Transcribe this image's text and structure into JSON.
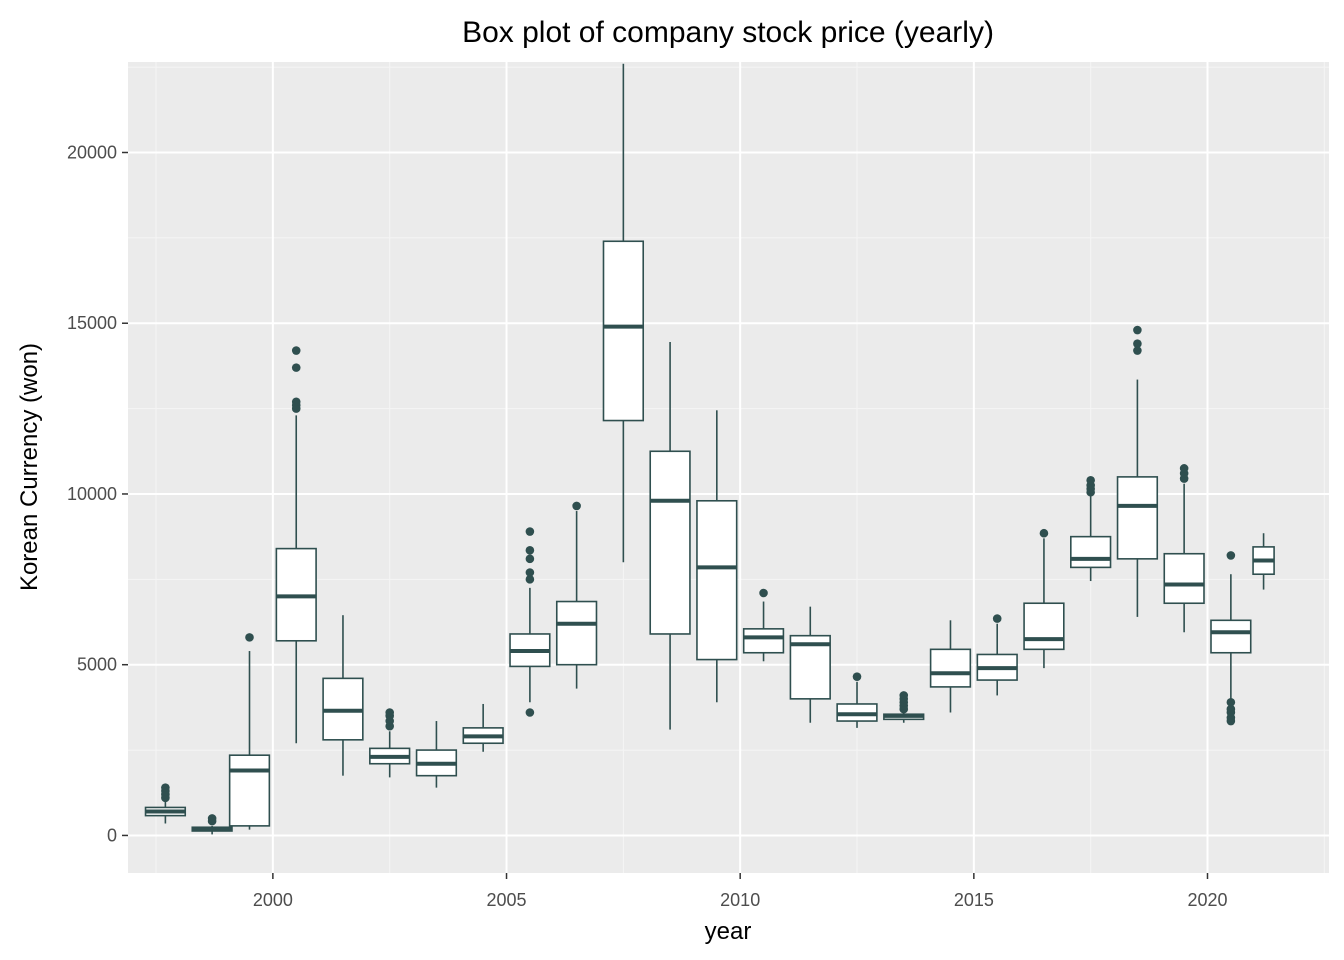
{
  "colors": {
    "panel_background": "#ebebeb",
    "grid_major": "#ffffff",
    "grid_minor": "#f5f5f5",
    "box_stroke": "#2f4f4f",
    "box_fill": "#ffffff",
    "tick_text": "#4d4d4d"
  },
  "chart_data": {
    "type": "box",
    "title": "Box plot of company stock price (yearly)",
    "xlabel": "year",
    "ylabel": "Korean Currency (won)",
    "xlim": [
      1996.9,
      2022.6
    ],
    "ylim": [
      -1100,
      22650
    ],
    "x_ticks": [
      2000,
      2005,
      2010,
      2015,
      2020
    ],
    "x_tick_labels": [
      "2000",
      "2005",
      "2010",
      "2015",
      "2020"
    ],
    "y_ticks": [
      0,
      5000,
      10000,
      15000,
      20000
    ],
    "y_tick_labels": [
      "0",
      "5000",
      "10000",
      "15000",
      "20000"
    ],
    "grid": true,
    "box_width_years": 0.85,
    "boxes": [
      {
        "x": 1997.7,
        "whisker_low": 350,
        "q1": 580,
        "median": 700,
        "q3": 820,
        "whisker_high": 1000,
        "outliers": [
          1100,
          1200,
          1300,
          1400
        ]
      },
      {
        "x": 1998.7,
        "whisker_low": 30,
        "q1": 130,
        "median": 180,
        "q3": 240,
        "whisker_high": 280,
        "outliers": [
          420,
          500
        ]
      },
      {
        "x": 1999.5,
        "whisker_low": 170,
        "q1": 280,
        "median": 1900,
        "q3": 2350,
        "whisker_high": 5400,
        "outliers": [
          5800
        ]
      },
      {
        "x": 2000.5,
        "whisker_low": 2700,
        "q1": 5700,
        "median": 7000,
        "q3": 8400,
        "whisker_high": 12300,
        "outliers": [
          12500,
          12600,
          12700,
          13700,
          14200
        ]
      },
      {
        "x": 2001.5,
        "whisker_low": 1750,
        "q1": 2800,
        "median": 3650,
        "q3": 4600,
        "whisker_high": 6450,
        "outliers": []
      },
      {
        "x": 2002.5,
        "whisker_low": 1700,
        "q1": 2100,
        "median": 2300,
        "q3": 2550,
        "whisker_high": 3050,
        "outliers": [
          3200,
          3350,
          3500,
          3600
        ]
      },
      {
        "x": 2003.5,
        "whisker_low": 1400,
        "q1": 1750,
        "median": 2100,
        "q3": 2500,
        "whisker_high": 3350,
        "outliers": []
      },
      {
        "x": 2004.5,
        "whisker_low": 2450,
        "q1": 2700,
        "median": 2900,
        "q3": 3150,
        "whisker_high": 3850,
        "outliers": []
      },
      {
        "x": 2005.5,
        "whisker_low": 3900,
        "q1": 4950,
        "median": 5400,
        "q3": 5900,
        "whisker_high": 7250,
        "outliers": [
          3600,
          7500,
          7700,
          8100,
          8350,
          8900
        ]
      },
      {
        "x": 2006.5,
        "whisker_low": 4300,
        "q1": 5000,
        "median": 6200,
        "q3": 6850,
        "whisker_high": 9500,
        "outliers": [
          9650
        ]
      },
      {
        "x": 2007.5,
        "whisker_low": 8000,
        "q1": 12150,
        "median": 14900,
        "q3": 17400,
        "whisker_high": 22600,
        "outliers": []
      },
      {
        "x": 2008.5,
        "whisker_low": 3100,
        "q1": 5900,
        "median": 9800,
        "q3": 11250,
        "whisker_high": 14450,
        "outliers": []
      },
      {
        "x": 2009.5,
        "whisker_low": 3900,
        "q1": 5150,
        "median": 7850,
        "q3": 9800,
        "whisker_high": 12450,
        "outliers": []
      },
      {
        "x": 2010.5,
        "whisker_low": 5100,
        "q1": 5350,
        "median": 5800,
        "q3": 6050,
        "whisker_high": 6850,
        "outliers": [
          7100
        ]
      },
      {
        "x": 2011.5,
        "whisker_low": 3300,
        "q1": 4000,
        "median": 5600,
        "q3": 5850,
        "whisker_high": 6700,
        "outliers": []
      },
      {
        "x": 2012.5,
        "whisker_low": 3150,
        "q1": 3350,
        "median": 3550,
        "q3": 3850,
        "whisker_high": 4500,
        "outliers": [
          4650
        ]
      },
      {
        "x": 2013.5,
        "whisker_low": 3300,
        "q1": 3400,
        "median": 3500,
        "q3": 3550,
        "whisker_high": 3650,
        "outliers": [
          3700,
          3800,
          3900,
          4000,
          4100
        ]
      },
      {
        "x": 2014.5,
        "whisker_low": 3600,
        "q1": 4350,
        "median": 4750,
        "q3": 5450,
        "whisker_high": 6300,
        "outliers": []
      },
      {
        "x": 2015.5,
        "whisker_low": 4100,
        "q1": 4550,
        "median": 4900,
        "q3": 5300,
        "whisker_high": 6200,
        "outliers": [
          6350
        ]
      },
      {
        "x": 2016.5,
        "whisker_low": 4900,
        "q1": 5450,
        "median": 5750,
        "q3": 6800,
        "whisker_high": 8700,
        "outliers": [
          8850
        ]
      },
      {
        "x": 2017.5,
        "whisker_low": 7450,
        "q1": 7850,
        "median": 8100,
        "q3": 8750,
        "whisker_high": 9950,
        "outliers": [
          10050,
          10150,
          10250,
          10400
        ]
      },
      {
        "x": 2018.5,
        "whisker_low": 6400,
        "q1": 8100,
        "median": 9650,
        "q3": 10500,
        "whisker_high": 13350,
        "outliers": [
          14200,
          14400,
          14800
        ]
      },
      {
        "x": 2019.5,
        "whisker_low": 5950,
        "q1": 6800,
        "median": 7350,
        "q3": 8250,
        "whisker_high": 10300,
        "outliers": [
          10450,
          10600,
          10750
        ]
      },
      {
        "x": 2020.5,
        "whisker_low": 4000,
        "q1": 5350,
        "median": 5950,
        "q3": 6300,
        "whisker_high": 7650,
        "outliers": [
          3350,
          3450,
          3600,
          3700,
          3900,
          8200
        ]
      },
      {
        "x": 2021.2,
        "whisker_low": 7200,
        "q1": 7650,
        "median": 8050,
        "q3": 8450,
        "whisker_high": 8850,
        "outliers": [],
        "width_years": 0.45
      }
    ]
  }
}
